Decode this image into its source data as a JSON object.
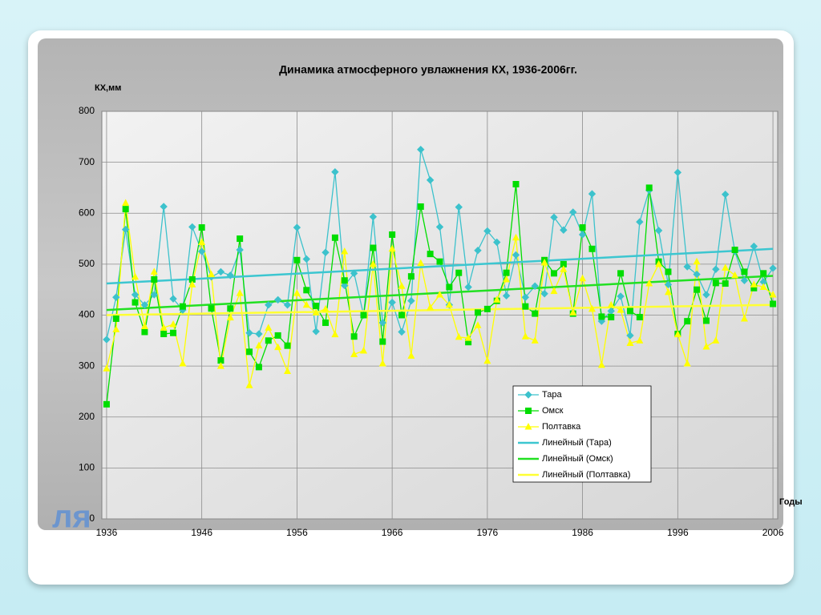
{
  "chart_data": {
    "type": "line",
    "title": "Динамика атмосферного увлажнения КХ, 1936-2006гг.",
    "y_label": "КХ,мм",
    "x_label": "Годы",
    "watermark": "ля",
    "x": [
      1936,
      1937,
      1938,
      1939,
      1940,
      1941,
      1942,
      1943,
      1944,
      1945,
      1946,
      1947,
      1948,
      1949,
      1950,
      1951,
      1952,
      1953,
      1954,
      1955,
      1956,
      1957,
      1958,
      1959,
      1960,
      1961,
      1962,
      1963,
      1964,
      1965,
      1966,
      1967,
      1968,
      1969,
      1970,
      1971,
      1972,
      1973,
      1974,
      1975,
      1976,
      1977,
      1978,
      1979,
      1980,
      1981,
      1982,
      1983,
      1984,
      1985,
      1986,
      1987,
      1988,
      1989,
      1990,
      1991,
      1992,
      1993,
      1994,
      1995,
      1996,
      1997,
      1998,
      1999,
      2000,
      2001,
      2002,
      2003,
      2004,
      2005,
      2006
    ],
    "series": [
      {
        "name": "Тара",
        "color": "#3cc2cc",
        "marker": "diamond",
        "values": [
          352,
          435,
          568,
          440,
          420,
          440,
          613,
          432,
          410,
          573,
          525,
          475,
          485,
          478,
          528,
          365,
          363,
          420,
          430,
          420,
          572,
          510,
          368,
          523,
          681,
          458,
          482,
          400,
          593,
          385,
          425,
          367,
          428,
          725,
          665,
          573,
          420,
          612,
          455,
          527,
          565,
          543,
          438,
          518,
          435,
          457,
          442,
          592,
          567,
          602,
          558,
          638,
          388,
          408,
          437,
          360,
          583,
          645,
          566,
          460,
          680,
          495,
          480,
          440,
          490,
          637,
          525,
          468,
          535,
          465,
          492
        ]
      },
      {
        "name": "Омск",
        "color": "#00dd00",
        "marker": "square",
        "values": [
          225,
          393,
          608,
          425,
          367,
          470,
          363,
          365,
          417,
          470,
          572,
          413,
          311,
          413,
          550,
          328,
          298,
          350,
          360,
          340,
          508,
          449,
          418,
          385,
          552,
          468,
          358,
          400,
          532,
          348,
          558,
          400,
          476,
          613,
          520,
          505,
          455,
          483,
          347,
          405,
          412,
          428,
          483,
          657,
          417,
          403,
          508,
          482,
          500,
          403,
          572,
          530,
          397,
          396,
          482,
          408,
          396,
          650,
          505,
          485,
          363,
          388,
          450,
          389,
          463,
          462,
          528,
          485,
          453,
          482,
          422
        ]
      },
      {
        "name": "Полтавка",
        "color": "#ffff00",
        "marker": "triangle",
        "values": [
          295,
          372,
          620,
          475,
          378,
          485,
          375,
          382,
          305,
          460,
          543,
          480,
          300,
          395,
          443,
          262,
          340,
          375,
          337,
          290,
          443,
          420,
          405,
          412,
          362,
          525,
          323,
          330,
          500,
          305,
          530,
          457,
          320,
          502,
          415,
          440,
          420,
          357,
          355,
          380,
          310,
          430,
          470,
          552,
          358,
          350,
          503,
          447,
          490,
          405,
          472,
          412,
          302,
          420,
          410,
          345,
          350,
          462,
          500,
          445,
          362,
          305,
          505,
          338,
          350,
          493,
          478,
          393,
          460,
          455,
          440
        ]
      }
    ],
    "trendlines": [
      {
        "name": "Линейный (Тара)",
        "color": "#3cc6d0",
        "x": [
          1936,
          2006
        ],
        "values": [
          462,
          530
        ]
      },
      {
        "name": "Линейный (Омск)",
        "color": "#22e022",
        "x": [
          1936,
          2006
        ],
        "values": [
          410,
          477
        ]
      },
      {
        "name": "Линейный (Полтавка)",
        "color": "#ffff33",
        "x": [
          1936,
          2006
        ],
        "values": [
          400,
          420
        ]
      }
    ],
    "xlim": [
      1935.5,
      2006.5
    ],
    "xticks": [
      1936,
      1946,
      1956,
      1966,
      1976,
      1986,
      1996,
      2006
    ],
    "ylim": [
      0,
      800
    ],
    "yticks": [
      0,
      100,
      200,
      300,
      400,
      500,
      600,
      700,
      800
    ],
    "grid": true,
    "legend": "lower right"
  }
}
